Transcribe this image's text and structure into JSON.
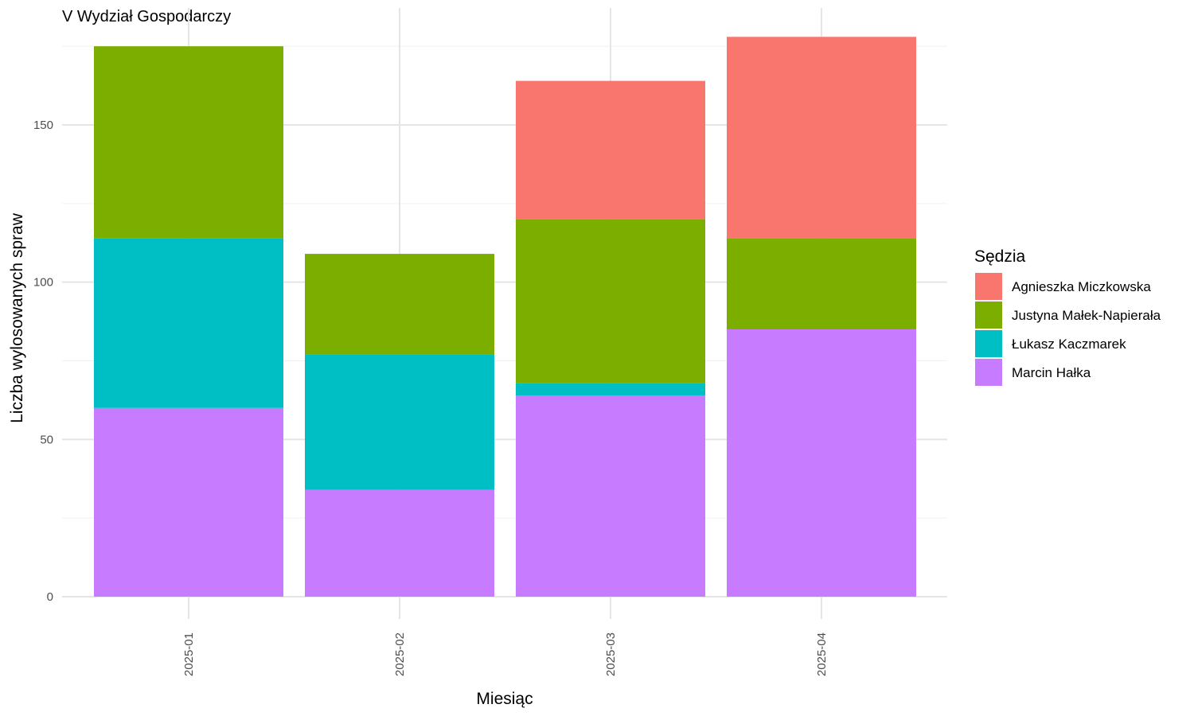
{
  "chart_data": {
    "type": "bar",
    "stacked": true,
    "title": "V Wydział Gospodarczy",
    "xlabel": "Miesiąc",
    "ylabel": "Liczba wylosowanych spraw",
    "ylim": [
      0,
      180
    ],
    "yticks": [
      0,
      50,
      100,
      150
    ],
    "grid": true,
    "legend_title": "Sędzia",
    "legend_position": "right",
    "categories": [
      "2025-01",
      "2025-02",
      "2025-03",
      "2025-04"
    ],
    "series": [
      {
        "name": "Agnieszka Miczkowska",
        "color": "#F8766D",
        "values": [
          0,
          0,
          44,
          64
        ]
      },
      {
        "name": "Justyna Małek-Napierała",
        "color": "#7CAE00",
        "values": [
          61,
          32,
          52,
          29
        ]
      },
      {
        "name": "Łukasz Kaczmarek",
        "color": "#00BFC4",
        "values": [
          54,
          43,
          4,
          0
        ]
      },
      {
        "name": "Marcin Hałka",
        "color": "#C77CFF",
        "values": [
          60,
          34,
          64,
          85
        ]
      }
    ]
  }
}
